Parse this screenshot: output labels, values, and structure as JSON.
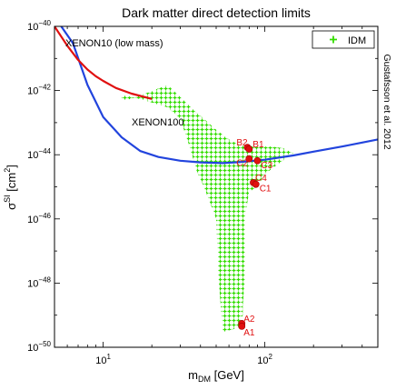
{
  "chart_data": {
    "type": "scatter",
    "title": "Dark matter direct detection limits",
    "xlabel": {
      "main": "m",
      "sub": "DM",
      "rest": " [GeV]"
    },
    "ylabel": {
      "main": "σ",
      "sup": "SI",
      "mid": " [cm",
      "sup2": "2",
      "end": "]"
    },
    "x_scale": "log",
    "y_scale": "log",
    "xlim": [
      5,
      500
    ],
    "ylim": [
      1e-50,
      1e-40
    ],
    "x_ticks": [
      {
        "value": 10,
        "base": "10",
        "exp": "1"
      },
      {
        "value": 100,
        "base": "10",
        "exp": "2"
      }
    ],
    "y_ticks": [
      {
        "value": 1e-50,
        "base": "10",
        "exp": "−50"
      },
      {
        "value": 1e-48,
        "base": "10",
        "exp": "−48"
      },
      {
        "value": 1e-46,
        "base": "10",
        "exp": "−46"
      },
      {
        "value": 1e-44,
        "base": "10",
        "exp": "−44"
      },
      {
        "value": 1e-42,
        "base": "10",
        "exp": "−42"
      },
      {
        "value": 1e-40,
        "base": "10",
        "exp": "−40"
      }
    ],
    "legend": {
      "position": "top-right",
      "entries": [
        {
          "label": "IDM",
          "marker": "+",
          "color": "#33dd00"
        }
      ]
    },
    "annotation_side": "Gustafsson et al. 2012",
    "colors": {
      "idm": "#33dd00",
      "xenon100": "#2244dd",
      "xenon10": "#e01010",
      "benchmark": "#e01010"
    },
    "series": [
      {
        "name": "XENON100",
        "kind": "line",
        "color": "#2244dd",
        "x": [
          5.5,
          6.5,
          8,
          10,
          13,
          17,
          22,
          30,
          40,
          55,
          70,
          100,
          150,
          200,
          300,
          400,
          500
        ],
        "y": [
          1e-40,
          3e-41,
          1.5e-42,
          1.5e-43,
          3.5e-44,
          1.3e-44,
          8.5e-45,
          6.5e-45,
          5.8e-45,
          5.5e-45,
          5.9e-45,
          7e-45,
          9.5e-45,
          1.25e-44,
          1.8e-44,
          2.4e-44,
          3e-44
        ]
      },
      {
        "name": "XENON10 (low mass)",
        "kind": "line",
        "color": "#e01010",
        "x": [
          5,
          6,
          7,
          8,
          9,
          10,
          12,
          15,
          20
        ],
        "y": [
          1e-40,
          2.5e-41,
          9e-42,
          4.5e-42,
          2.8e-42,
          2e-42,
          1.2e-42,
          8e-43,
          5.5e-43
        ]
      },
      {
        "name": "IDM",
        "kind": "region",
        "color": "#33dd00",
        "polygon": [
          [
            13,
            5e-43
          ],
          [
            15,
            5.5e-43
          ],
          [
            25,
            1.5e-42
          ],
          [
            35,
            3e-43
          ],
          [
            50,
            6e-44
          ],
          [
            60,
            3e-44
          ],
          [
            70,
            2e-44
          ],
          [
            90,
            1.8e-44
          ],
          [
            110,
            1.8e-44
          ],
          [
            130,
            1.6e-44
          ],
          [
            150,
            1.1e-44
          ],
          [
            120,
            5e-45
          ],
          [
            100,
            2.5e-45
          ],
          [
            90,
            1e-45
          ],
          [
            80,
            7e-46
          ],
          [
            75,
            1e-46
          ],
          [
            75,
            1e-48
          ],
          [
            73,
            2e-49
          ],
          [
            73,
            1e-49
          ],
          [
            68,
            4e-50
          ],
          [
            55,
            3e-50
          ],
          [
            52,
            1e-48
          ],
          [
            50,
            1e-46
          ],
          [
            42,
            1e-45
          ],
          [
            38,
            3e-45
          ],
          [
            34,
            2e-44
          ],
          [
            30,
            1.3e-43
          ],
          [
            25,
            3e-43
          ],
          [
            18,
            5e-43
          ],
          [
            13,
            7.5e-43
          ]
        ]
      }
    ],
    "benchmarks": [
      {
        "label": "B2",
        "x": 78,
        "y": 1.7e-44
      },
      {
        "label": "B1",
        "x": 80,
        "y": 1.5e-44
      },
      {
        "label": "C2",
        "x": 80,
        "y": 7.5e-45
      },
      {
        "label": "C3",
        "x": 90,
        "y": 6.5e-45
      },
      {
        "label": "C4",
        "x": 85,
        "y": 1.35e-45
      },
      {
        "label": "C1",
        "x": 88,
        "y": 1.2e-45
      },
      {
        "label": "A2",
        "x": 72,
        "y": 5.5e-50
      },
      {
        "label": "A1",
        "x": 72,
        "y": 4.5e-50
      }
    ],
    "line_labels": [
      {
        "text": "XENON10 (low mass)",
        "color": "#e01010"
      },
      {
        "text": "XENON100",
        "color": "#2244dd"
      }
    ]
  }
}
